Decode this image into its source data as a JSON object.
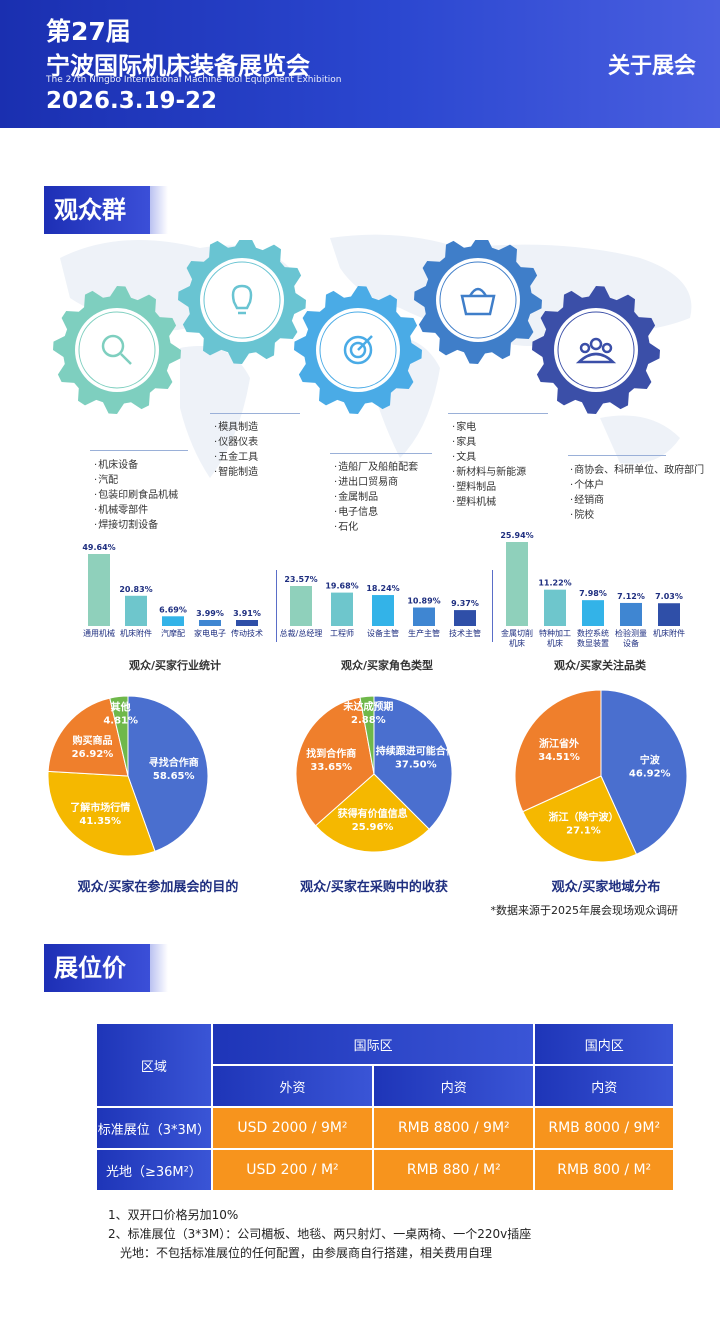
{
  "header": {
    "edition": "第27届",
    "title": "宁波国际机床装备展览会",
    "title_en": "The 27th Ningbo International Machine Tool Equipment Exhibition",
    "date": "2026.3.19-22",
    "right_label": "关于展会"
  },
  "audience": {
    "section_title": "观众群体",
    "categories": [
      {
        "items": [
          "机床设备",
          "汽配",
          "包装印刷食品机械",
          "机械零部件",
          "焊接切割设备"
        ],
        "icon": "magnifier-icon"
      },
      {
        "items": [
          "模具制造",
          "仪器仪表",
          "五金工具",
          "智能制造"
        ],
        "icon": "lightbulb-icon"
      },
      {
        "items": [
          "造船厂及船舶配套",
          "进出口贸易商",
          "金属制品",
          "电子信息",
          "石化"
        ],
        "icon": "target-icon"
      },
      {
        "items": [
          "家电",
          "家具",
          "文具",
          "新材料与新能源",
          "塑料制品",
          "塑料机械"
        ],
        "icon": "basket-icon"
      },
      {
        "items": [
          "商协会、科研单位、政府部门",
          "个体户",
          "经销商",
          "院校"
        ],
        "icon": "people-icon"
      }
    ],
    "gear_colors": [
      "#7ecfbf",
      "#69c4d2",
      "#4aabe6",
      "#3f7ec9",
      "#3b4fa8"
    ]
  },
  "chart_data": [
    {
      "type": "bar",
      "title": "观众/买家行业统计",
      "categories": [
        "通用机械",
        "机床附件",
        "汽摩配",
        "家电电子",
        "传动技术"
      ],
      "values": [
        49.64,
        20.83,
        6.69,
        3.99,
        3.91
      ],
      "value_labels": [
        "49.64%",
        "20.83%",
        "6.69%",
        "3.99%",
        "3.91%"
      ],
      "colors": [
        "#8fd0bb",
        "#6ec6cc",
        "#33b3e8",
        "#3f86d2",
        "#2f4fa8"
      ]
    },
    {
      "type": "bar",
      "title": "观众/买家角色类型",
      "categories": [
        "总裁/总经理",
        "工程师",
        "设备主管",
        "生产主管",
        "技术主管"
      ],
      "values": [
        23.57,
        19.68,
        18.24,
        10.89,
        9.37
      ],
      "value_labels": [
        "23.57%",
        "19.68%",
        "18.24%",
        "10.89%",
        "9.37%"
      ],
      "colors": [
        "#8fd0bb",
        "#6ec6cc",
        "#33b3e8",
        "#3f86d2",
        "#2f4fa8"
      ]
    },
    {
      "type": "bar",
      "title": "观众/买家关注品类",
      "categories": [
        "金属切削机床",
        "特种加工机床",
        "数控系统数显装置",
        "检验测量设备",
        "机床附件"
      ],
      "category_lines": [
        [
          "金属切削",
          "机床"
        ],
        [
          "特种加工",
          "机床"
        ],
        [
          "数控系统",
          "数显装置"
        ],
        [
          "检验测量",
          "设备"
        ],
        [
          "机床附件"
        ]
      ],
      "values": [
        25.94,
        11.22,
        7.98,
        7.12,
        7.03
      ],
      "value_labels": [
        "25.94%",
        "11.22%",
        "7.98%",
        "7.12%",
        "7.03%"
      ],
      "colors": [
        "#8fd0bb",
        "#6ec6cc",
        "#33b3e8",
        "#3f86d2",
        "#2f4fa8"
      ]
    },
    {
      "type": "pie",
      "title": "观众/买家在参加展会的目的",
      "slices": [
        {
          "name": "寻找合作商",
          "value": 58.65,
          "label": "58.65%",
          "color": "#4a6fcf"
        },
        {
          "name": "了解市场行情",
          "value": 41.35,
          "label": "41.35%",
          "color": "#f5b800"
        },
        {
          "name": "购买商品",
          "value": 26.92,
          "label": "26.92%",
          "color": "#ef7f2c"
        },
        {
          "name": "其他",
          "value": 4.81,
          "label": "4.81%",
          "color": "#6fb84a"
        }
      ]
    },
    {
      "type": "pie",
      "title": "观众/买家在采购中的收获",
      "slices": [
        {
          "name": "持续跟进可能合作",
          "value": 37.5,
          "label": "37.50%",
          "color": "#4a6fcf"
        },
        {
          "name": "获得有价值信息",
          "value": 25.96,
          "label": "25.96%",
          "color": "#f5b800"
        },
        {
          "name": "找到合作商",
          "value": 33.65,
          "label": "33.65%",
          "color": "#ef7f2c"
        },
        {
          "name": "未达成预期",
          "value": 2.88,
          "label": "2.88%",
          "color": "#6fb84a"
        }
      ]
    },
    {
      "type": "pie",
      "title": "观众/买家地域分布",
      "slices": [
        {
          "name": "宁波",
          "value": 46.92,
          "label": "46.92%",
          "color": "#4a6fcf"
        },
        {
          "name": "浙江（除宁波）",
          "value": 27.1,
          "label": "27.1%",
          "color": "#f5b800"
        },
        {
          "name": "浙江省外",
          "value": 34.51,
          "label": "34.51%",
          "color": "#ef7f2c"
        }
      ]
    }
  ],
  "source_note": "*数据来源于2025年展会现场观众调研",
  "price": {
    "section_title": "展位价格",
    "header": {
      "region": "区域",
      "intl": "国际区",
      "domestic": "国内区",
      "foreign": "外资",
      "local": "内资",
      "local2": "内资"
    },
    "rows": [
      {
        "label": "标准展位（3*3M）",
        "foreign": "USD 2000 / 9M²",
        "local": "RMB 8800 / 9M²",
        "domestic": "RMB 8000 / 9M²"
      },
      {
        "label": "光地（≥36M²）",
        "foreign": "USD 200 / M²",
        "local": "RMB 880 / M²",
        "domestic": "RMB 800 / M²"
      }
    ],
    "notes": [
      "1、双开口价格另加10%",
      "2、标准展位（3*3M）：公司楣板、地毯、两只射灯、一桌两椅、一个220v插座",
      "光地：不包括标准展位的任何配置，由参展商自行搭建，相关费用自理"
    ]
  }
}
